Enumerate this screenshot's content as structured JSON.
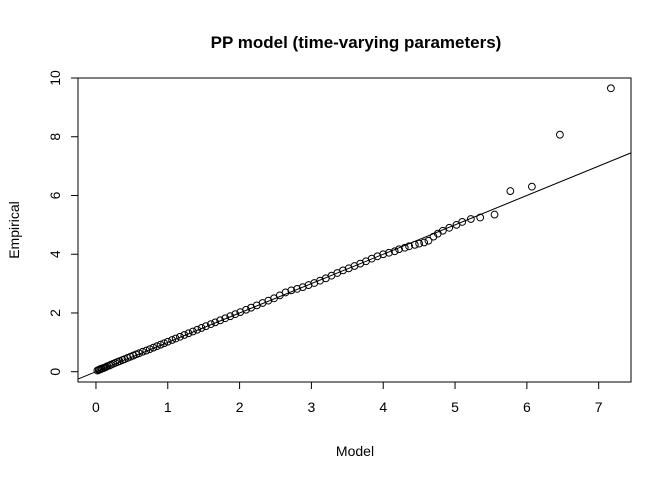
{
  "chart_data": {
    "type": "scatter",
    "title": "PP model (time-varying parameters)",
    "xlabel": "Model",
    "ylabel": "Empirical",
    "xlim": [
      -0.25,
      7.45
    ],
    "ylim": [
      -0.35,
      10.0
    ],
    "x_ticks": [
      0,
      1,
      2,
      3,
      4,
      5,
      6,
      7
    ],
    "y_ticks": [
      0,
      2,
      4,
      6,
      8,
      10
    ],
    "grid": false,
    "legend": "none",
    "reference_line": {
      "slope": 1,
      "intercept": 0
    },
    "series": [
      {
        "points": [
          [
            0.02,
            0.04
          ],
          [
            0.04,
            0.06
          ],
          [
            0.05,
            0.08
          ],
          [
            0.07,
            0.09
          ],
          [
            0.08,
            0.11
          ],
          [
            0.1,
            0.12
          ],
          [
            0.12,
            0.14
          ],
          [
            0.14,
            0.16
          ],
          [
            0.16,
            0.19
          ],
          [
            0.19,
            0.21
          ],
          [
            0.21,
            0.24
          ],
          [
            0.24,
            0.27
          ],
          [
            0.27,
            0.3
          ],
          [
            0.3,
            0.33
          ],
          [
            0.33,
            0.36
          ],
          [
            0.37,
            0.4
          ],
          [
            0.4,
            0.43
          ],
          [
            0.44,
            0.47
          ],
          [
            0.48,
            0.51
          ],
          [
            0.52,
            0.55
          ],
          [
            0.56,
            0.59
          ],
          [
            0.6,
            0.63
          ],
          [
            0.65,
            0.68
          ],
          [
            0.7,
            0.72
          ],
          [
            0.75,
            0.77
          ],
          [
            0.8,
            0.82
          ],
          [
            0.85,
            0.87
          ],
          [
            0.9,
            0.92
          ],
          [
            0.95,
            0.97
          ],
          [
            1.0,
            1.02
          ],
          [
            1.06,
            1.08
          ],
          [
            1.11,
            1.13
          ],
          [
            1.17,
            1.19
          ],
          [
            1.23,
            1.25
          ],
          [
            1.29,
            1.31
          ],
          [
            1.35,
            1.37
          ],
          [
            1.41,
            1.43
          ],
          [
            1.47,
            1.49
          ],
          [
            1.53,
            1.55
          ],
          [
            1.6,
            1.62
          ],
          [
            1.66,
            1.68
          ],
          [
            1.73,
            1.75
          ],
          [
            1.8,
            1.82
          ],
          [
            1.87,
            1.89
          ],
          [
            1.94,
            1.96
          ],
          [
            2.01,
            2.03
          ],
          [
            2.09,
            2.11
          ],
          [
            2.16,
            2.18
          ],
          [
            2.24,
            2.26
          ],
          [
            2.32,
            2.34
          ],
          [
            2.4,
            2.42
          ],
          [
            2.48,
            2.5
          ],
          [
            2.56,
            2.6
          ],
          [
            2.64,
            2.7
          ],
          [
            2.72,
            2.77
          ],
          [
            2.8,
            2.82
          ],
          [
            2.88,
            2.88
          ],
          [
            2.96,
            2.95
          ],
          [
            3.04,
            3.02
          ],
          [
            3.12,
            3.1
          ],
          [
            3.2,
            3.18
          ],
          [
            3.28,
            3.27
          ],
          [
            3.36,
            3.36
          ],
          [
            3.44,
            3.45
          ],
          [
            3.52,
            3.52
          ],
          [
            3.6,
            3.6
          ],
          [
            3.68,
            3.68
          ],
          [
            3.76,
            3.76
          ],
          [
            3.84,
            3.85
          ],
          [
            3.92,
            3.93
          ],
          [
            4.0,
            4.0
          ],
          [
            4.08,
            4.05
          ],
          [
            4.16,
            4.1
          ],
          [
            4.22,
            4.17
          ],
          [
            4.3,
            4.22
          ],
          [
            4.36,
            4.27
          ],
          [
            4.44,
            4.32
          ],
          [
            4.5,
            4.36
          ],
          [
            4.57,
            4.4
          ],
          [
            4.63,
            4.46
          ],
          [
            4.7,
            4.6
          ],
          [
            4.76,
            4.7
          ],
          [
            4.83,
            4.8
          ],
          [
            4.92,
            4.9
          ],
          [
            5.02,
            5.0
          ],
          [
            5.1,
            5.1
          ],
          [
            5.22,
            5.2
          ],
          [
            5.35,
            5.25
          ],
          [
            5.55,
            5.35
          ],
          [
            5.77,
            6.15
          ],
          [
            6.07,
            6.3
          ],
          [
            6.46,
            8.07
          ],
          [
            7.17,
            9.65
          ]
        ]
      }
    ]
  }
}
